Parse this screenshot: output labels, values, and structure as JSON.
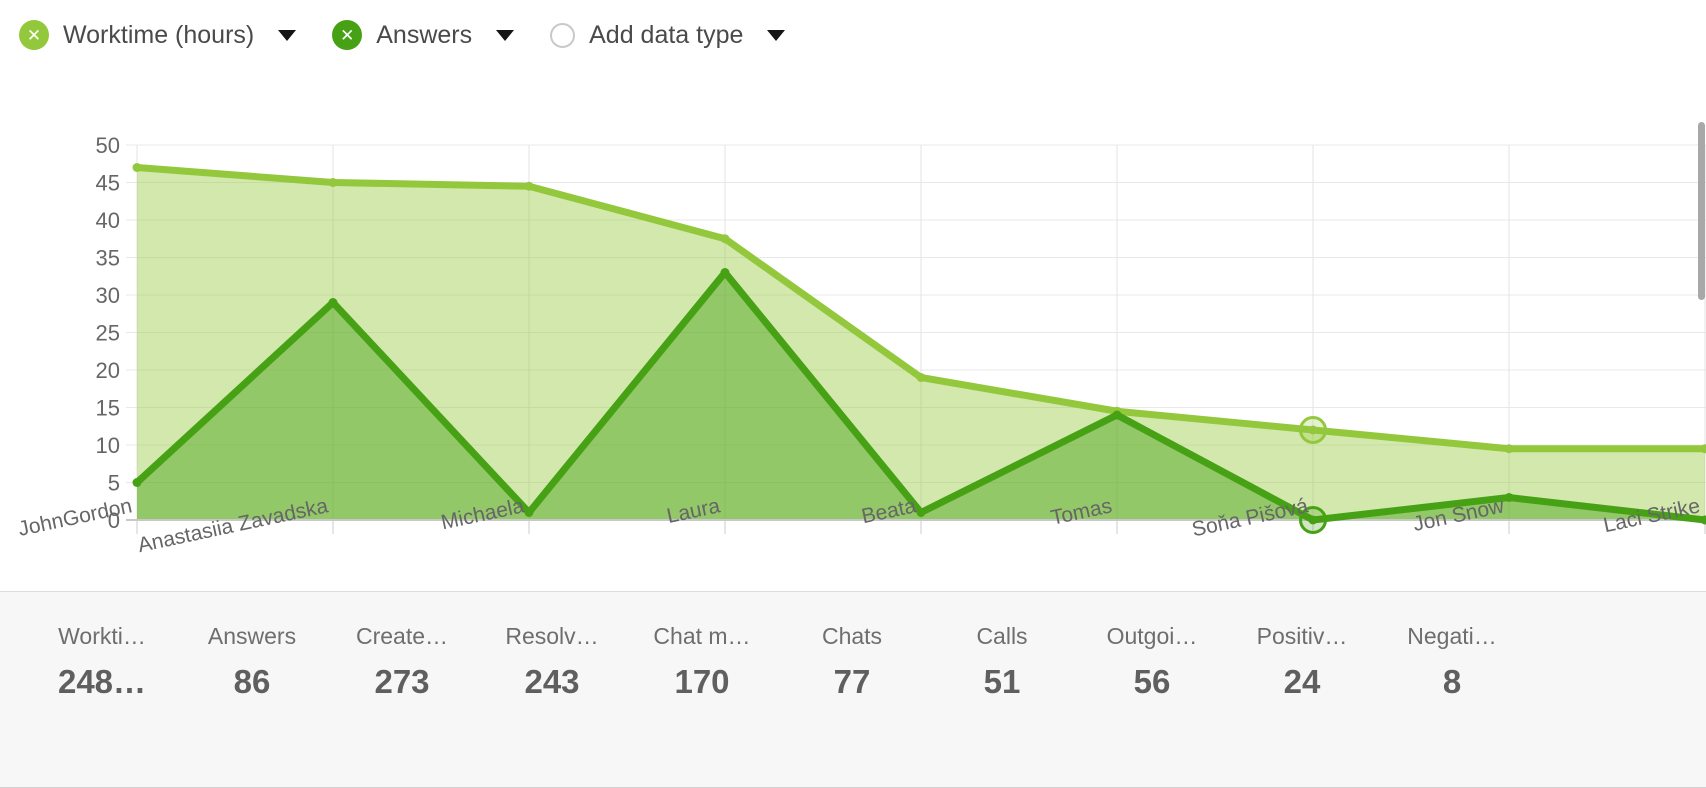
{
  "legend": {
    "series": [
      {
        "label": "Worktime (hours)",
        "color": "#93C83C",
        "icon": "close-circle"
      },
      {
        "label": "Answers",
        "color": "#47A115",
        "icon": "close-circle"
      }
    ],
    "add_label": "Add data type",
    "close_glyph": "✕"
  },
  "chart_data": {
    "type": "area",
    "categories": [
      "JohnGordon",
      "Anastasiia Zavadska",
      "Michaela",
      "Laura",
      "Beata",
      "Tomas",
      "Soňa Pišová",
      "Jon Snow",
      "Laci Strike"
    ],
    "series": [
      {
        "name": "Worktime (hours)",
        "color": "#93C83C",
        "fill_opacity": 0.42,
        "values": [
          47,
          45,
          44.5,
          37.5,
          19,
          14.5,
          12,
          9.5,
          9.5
        ],
        "highlight_index": 6
      },
      {
        "name": "Answers",
        "color": "#47A115",
        "fill_opacity": 0.45,
        "values": [
          5,
          29,
          1,
          33,
          1,
          14,
          0,
          3,
          0
        ],
        "highlight_index": 6
      }
    ],
    "title": "",
    "xlabel": "",
    "ylabel": "",
    "ylim": [
      0,
      50
    ],
    "ytick_step": 5,
    "grid": true,
    "legend_position": "top-left",
    "axis_text_color": "#666666",
    "grid_color": "#e8e8e8",
    "vgrid_color": "#e3e3e3",
    "baseline_color": "#c8c8c8",
    "tick_color": "#cccccc"
  },
  "stats": [
    {
      "label": "Workti…",
      "value": "248…"
    },
    {
      "label": "Answers",
      "value": "86"
    },
    {
      "label": "Create…",
      "value": "273"
    },
    {
      "label": "Resolv…",
      "value": "243"
    },
    {
      "label": "Chat m…",
      "value": "170"
    },
    {
      "label": "Chats",
      "value": "77"
    },
    {
      "label": "Calls",
      "value": "51"
    },
    {
      "label": "Outgoi…",
      "value": "56"
    },
    {
      "label": "Positiv…",
      "value": "24"
    },
    {
      "label": "Negati…",
      "value": "8"
    }
  ]
}
